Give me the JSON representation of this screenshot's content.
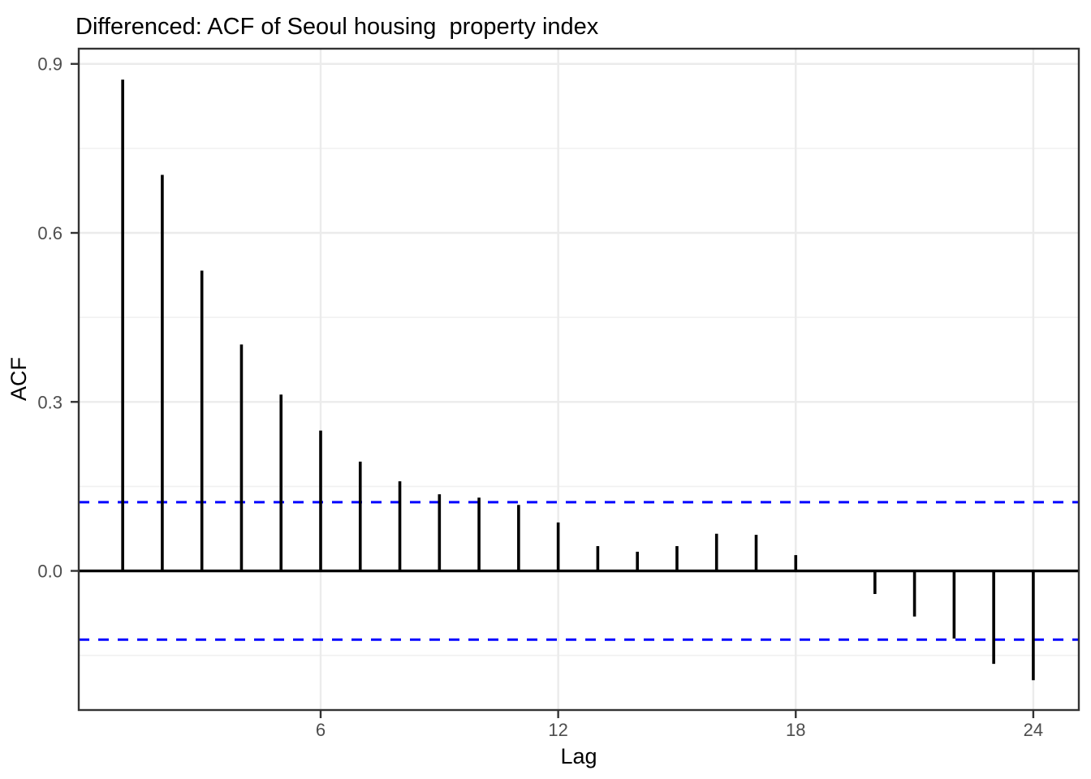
{
  "title": "Differenced: ACF of Seoul housing  property index",
  "chart_data": {
    "type": "bar",
    "subtype": "acf-stem-plot",
    "title": "Differenced: ACF of Seoul housing  property index",
    "xlabel": "Lag",
    "ylabel": "ACF",
    "x": [
      1,
      2,
      3,
      4,
      5,
      6,
      7,
      8,
      9,
      10,
      11,
      12,
      13,
      14,
      15,
      16,
      17,
      18,
      19,
      20,
      21,
      22,
      23,
      24
    ],
    "values": [
      0.872,
      0.703,
      0.533,
      0.402,
      0.313,
      0.249,
      0.194,
      0.159,
      0.136,
      0.13,
      0.117,
      0.086,
      0.044,
      0.034,
      0.044,
      0.066,
      0.064,
      0.028,
      0.0,
      -0.041,
      -0.081,
      -0.12,
      -0.165,
      -0.194
    ],
    "conf_bounds": {
      "upper": 0.122,
      "lower": -0.122,
      "line_style": "dashed"
    },
    "zero_line": 0.0,
    "xticks": [
      6,
      12,
      18,
      24
    ],
    "xtick_labels": [
      "6",
      "12",
      "18",
      "24"
    ],
    "yticks": [
      0.0,
      0.3,
      0.6,
      0.9
    ],
    "ytick_labels": [
      "0.0",
      "0.3",
      "0.6",
      "0.9"
    ],
    "yticks_minor": [
      -0.15,
      0.15,
      0.45,
      0.75
    ],
    "xlim": [
      -0.11,
      25.15
    ],
    "ylim": [
      -0.247,
      0.927
    ],
    "grid": "major horizontal + minor horizontal + major vertical, no vertical minors",
    "legend": "none",
    "colors": {
      "stem": "#000000",
      "zero_line": "#000000",
      "conf_line": "#0000FF",
      "grid_major": "#EBEBEB",
      "grid_minor": "#F0F0F0",
      "panel_border": "#333333",
      "tick_mark": "#333333",
      "tick_label": "#4D4D4D",
      "background": "#FFFFFF"
    }
  }
}
